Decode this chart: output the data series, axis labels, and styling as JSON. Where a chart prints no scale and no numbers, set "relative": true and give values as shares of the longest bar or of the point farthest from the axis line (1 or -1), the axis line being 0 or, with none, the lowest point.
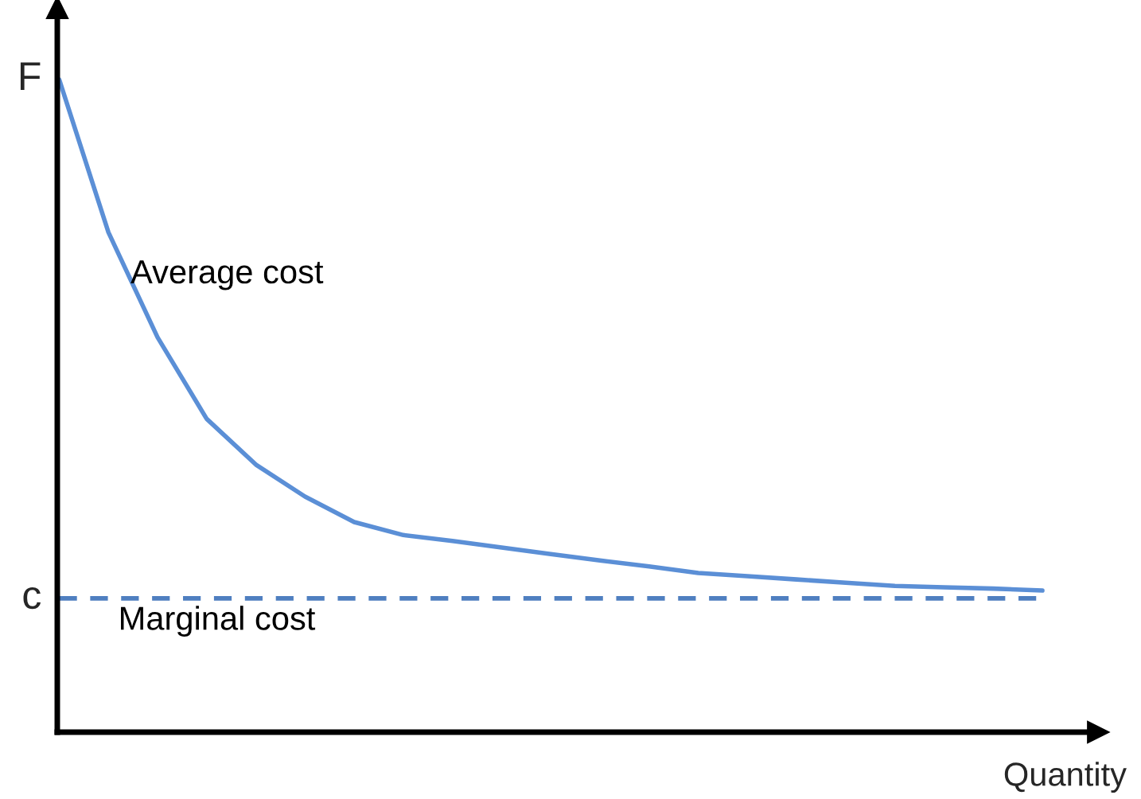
{
  "chart_data": {
    "type": "line",
    "relative": true,
    "xlabel": "Quantity",
    "categories": [
      null,
      null,
      null,
      null,
      null,
      null,
      null,
      null,
      null,
      null,
      null,
      null,
      null,
      null,
      null,
      null,
      null,
      null,
      null,
      null,
      null
    ],
    "series": [
      {
        "name": "Average cost",
        "color": "#5b8fd6",
        "line_style": "solid",
        "values": [
          1,
          0.766,
          0.605,
          0.48,
          0.41,
          0.361,
          0.322,
          0.302,
          0.293,
          0.283,
          0.273,
          0.263,
          0.254,
          0.244,
          0.239,
          0.234,
          0.229,
          0.224,
          0.222,
          0.22,
          0.217
        ]
      },
      {
        "name": "Marginal cost",
        "color": "#4f7fc0",
        "line_style": "dashed",
        "values": [
          0.205,
          0.205,
          0.205,
          0.205,
          0.205,
          0.205,
          0.205,
          0.205,
          0.205,
          0.205,
          0.205,
          0.205,
          0.205,
          0.205,
          0.205,
          0.205,
          0.205,
          0.205,
          0.205,
          0.205,
          0.205
        ]
      }
    ],
    "annotations": [
      "F",
      "c"
    ],
    "legend": false,
    "marker": "none"
  }
}
